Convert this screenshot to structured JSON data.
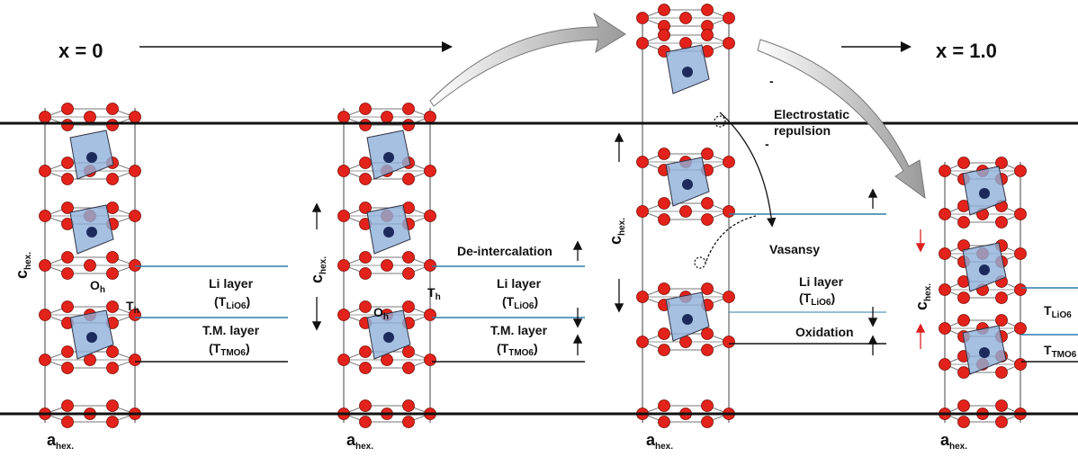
{
  "header": {
    "start_label": "x = 0",
    "end_label": "x = 1.0"
  },
  "panels": [
    {
      "c_axis": {
        "symbol": "c",
        "sub": "hex."
      },
      "a_axis": {
        "symbol": "a",
        "sub": "hex."
      },
      "oh_site": {
        "symbol": "O",
        "sub": "h"
      },
      "th_site": {
        "symbol": "T",
        "sub": "h"
      },
      "li_layer": {
        "name": "Li layer",
        "notation": {
          "prefix": "(T",
          "sub": "LiO6",
          "suffix": ")"
        }
      },
      "tm_layer": {
        "name": "T.M. layer",
        "notation": {
          "prefix": "(T",
          "sub": "TMO6",
          "suffix": ")"
        }
      }
    },
    {
      "c_axis": {
        "symbol": "c",
        "sub": "hex."
      },
      "a_axis": {
        "symbol": "a",
        "sub": "hex."
      },
      "oh_site": {
        "symbol": "O",
        "sub": "h"
      },
      "th_site": {
        "symbol": "T",
        "sub": "h"
      },
      "process": "De-intercalation",
      "li_layer": {
        "name": "Li layer",
        "notation": {
          "prefix": "(T",
          "sub": "LiO6",
          "suffix": ")"
        }
      },
      "tm_layer": {
        "name": "T.M. layer",
        "notation": {
          "prefix": "(T",
          "sub": "TMO6",
          "suffix": ")"
        }
      }
    },
    {
      "c_axis": {
        "symbol": "c",
        "sub": "hex."
      },
      "a_axis": {
        "symbol": "a",
        "sub": "hex."
      },
      "repulsion": [
        "Electrostatic",
        "repulsion"
      ],
      "charges": [
        "-",
        "-"
      ],
      "vacancy": "Vasansy",
      "li_layer": {
        "name": "Li layer",
        "notation": {
          "prefix": "(T",
          "sub": "LiO6",
          "suffix": ")"
        }
      },
      "process": "Oxidation"
    },
    {
      "c_axis": {
        "symbol": "c",
        "sub": "hex."
      },
      "a_axis": {
        "symbol": "a",
        "sub": "hex."
      },
      "li_notation": {
        "prefix": "T",
        "sub": "LiO6"
      },
      "tm_notation": {
        "prefix": "T",
        "sub": "TMO6"
      }
    }
  ]
}
